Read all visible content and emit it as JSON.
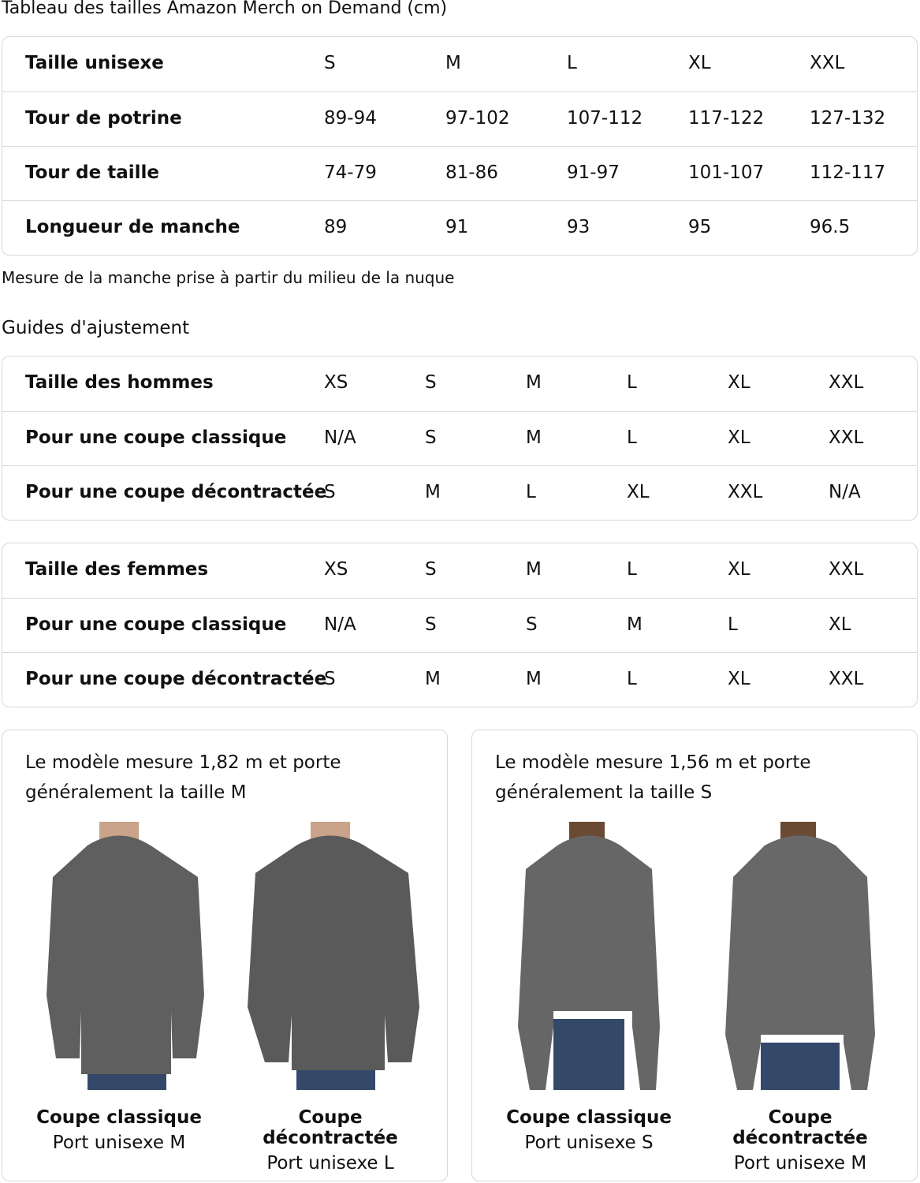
{
  "title": "Tableau des tailles Amazon Merch on Demand (cm)",
  "size_table": {
    "rows": [
      [
        "Taille unisexe",
        "S",
        "M",
        "L",
        "XL",
        "XXL"
      ],
      [
        "Tour de potrine",
        "89-94",
        "97-102",
        "107-112",
        "117-122",
        "127-132"
      ],
      [
        "Tour de taille",
        "74-79",
        "81-86",
        "91-97",
        "101-107",
        "112-117"
      ],
      [
        "Longueur de manche",
        "89",
        "91",
        "93",
        "95",
        "96.5"
      ]
    ]
  },
  "note": "Mesure de la manche prise à partir du milieu de la nuque",
  "fit_heading": "Guides d'ajustement",
  "men_table": {
    "rows": [
      [
        "Taille des hommes",
        "XS",
        "S",
        "M",
        "L",
        "XL",
        "XXL"
      ],
      [
        "Pour une coupe classique",
        "N/A",
        "S",
        "M",
        "L",
        "XL",
        "XXL"
      ],
      [
        "Pour une coupe décontractée",
        "S",
        "M",
        "L",
        "XL",
        "XXL",
        "N/A"
      ]
    ]
  },
  "women_table": {
    "rows": [
      [
        "Taille des femmes",
        "XS",
        "S",
        "M",
        "L",
        "XL",
        "XXL"
      ],
      [
        "Pour une coupe classique",
        "N/A",
        "S",
        "S",
        "M",
        "L",
        "XL"
      ],
      [
        "Pour une coupe décontractée",
        "S",
        "M",
        "M",
        "L",
        "XL",
        "XXL"
      ]
    ]
  },
  "models": [
    {
      "caption": "Le modèle mesure 1,82 m et porte généralement la taille M",
      "figures": [
        {
          "fit": "Coupe classique",
          "size": "Port unisexe M"
        },
        {
          "fit": "Coupe décontractée",
          "size": "Port unisexe L"
        }
      ]
    },
    {
      "caption": "Le modèle mesure 1,56 m et porte généralement la taille S",
      "figures": [
        {
          "fit": "Coupe classique",
          "size": "Port unisexe S"
        },
        {
          "fit": "Coupe décontractée",
          "size": "Port unisexe M"
        }
      ]
    }
  ],
  "colors": {
    "border": "#d5d9d9",
    "hoodie": "#5f5f5f",
    "jeans": "#34486a"
  }
}
